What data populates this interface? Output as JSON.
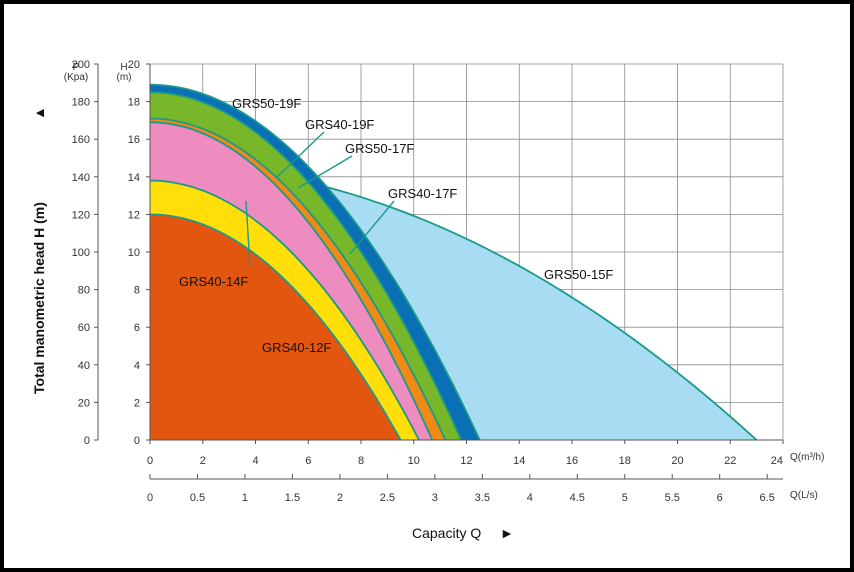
{
  "chart_data": {
    "type": "area",
    "ylabel": "Total manometric head H (m)",
    "xlabel": "Capacity Q",
    "arrow_glyph": "▲",
    "xarrow_glyph": "►",
    "left_axis_label": "P\n(Kpa)",
    "right_axis_label": "H\n(m)",
    "x_unit_m3h": "Q(m³/h)",
    "x_unit_ls": "Q(L/s)",
    "xlim": [
      0,
      24
    ],
    "ylim": [
      0,
      20
    ],
    "grid": true,
    "x_ticks_m3h": [
      "0",
      "2",
      "4",
      "6",
      "8",
      "10",
      "12",
      "14",
      "16",
      "18",
      "20",
      "22",
      "24"
    ],
    "x_ticks_ls": [
      "0",
      "0.5",
      "1",
      "1.5",
      "2",
      "2.5",
      "3",
      "3.5",
      "4",
      "4.5",
      "5",
      "5.5",
      "6",
      "6.5"
    ],
    "y_ticks_m": [
      "0",
      "2",
      "4",
      "6",
      "8",
      "10",
      "12",
      "14",
      "16",
      "18",
      "20"
    ],
    "y_ticks_kpa": [
      "0",
      "20",
      "40",
      "60",
      "80",
      "100",
      "120",
      "140",
      "160",
      "180",
      "200"
    ],
    "series": [
      {
        "name": "GRS50-15F",
        "shutoff_head": 14.7,
        "max_flow": 23.0,
        "color": "#a8dcf2"
      },
      {
        "name": "GRS50-19F",
        "shutoff_head": 18.9,
        "max_flow": 12.5,
        "color": "#0a6fb4"
      },
      {
        "name": "GRS40-19F",
        "shutoff_head": 18.5,
        "max_flow": 11.8,
        "color": "#78b72a"
      },
      {
        "name": "GRS50-17F",
        "shutoff_head": 17.1,
        "max_flow": 11.2,
        "color": "#ef8a15"
      },
      {
        "name": "GRS40-17F",
        "shutoff_head": 16.9,
        "max_flow": 10.7,
        "color": "#ef8cbf"
      },
      {
        "name": "GRS40-14F",
        "shutoff_head": 13.8,
        "max_flow": 10.2,
        "color": "#ffde0a"
      },
      {
        "name": "GRS40-12F",
        "shutoff_head": 12.0,
        "max_flow": 9.5,
        "color": "#e2560f"
      }
    ]
  }
}
